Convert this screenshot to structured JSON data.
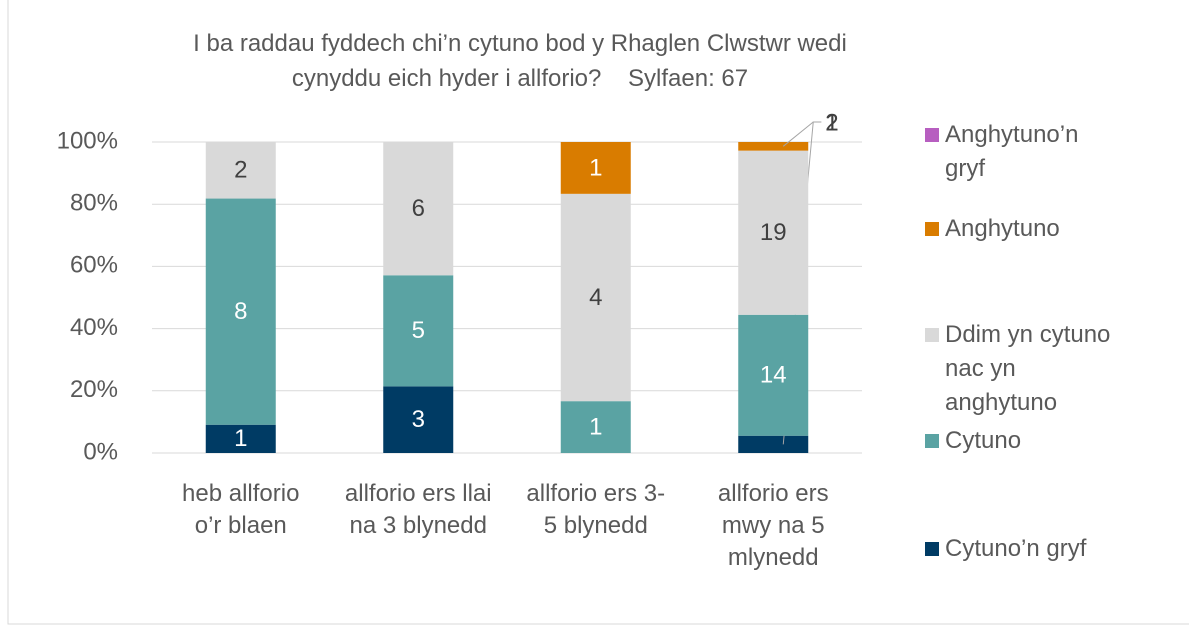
{
  "chart_data": {
    "type": "bar",
    "stacking": "percent",
    "title": [
      "I ba raddau fyddech chi’n cytuno bod y Rhaglen Clwstwr wedi",
      "cynyddu eich hyder i allforio?    Sylfaen: 67"
    ],
    "categories": [
      "heb allforio o’r blaen",
      "allforio ers llai na 3 blynedd",
      "allforio ers 3-5 blynedd",
      "allforio ers mwy na 5 mlynedd"
    ],
    "series": [
      {
        "name": "Cytuno’n gryf",
        "color": "#003b64",
        "values": [
          1,
          3,
          0,
          2
        ]
      },
      {
        "name": "Cytuno",
        "color": "#5aa3a3",
        "values": [
          8,
          5,
          1,
          14
        ]
      },
      {
        "name": "Ddim yn cytuno nac yn anghytuno",
        "color": "#d9d9d9",
        "values": [
          2,
          6,
          4,
          19
        ]
      },
      {
        "name": "Anghytuno",
        "color": "#d97c00",
        "values": [
          0,
          0,
          1,
          1
        ]
      },
      {
        "name": "Anghytuno’n gryf",
        "color": "#b75ec0",
        "values": [
          0,
          0,
          0,
          0
        ]
      }
    ],
    "ylim": [
      0,
      100
    ],
    "yticks": [
      {
        "value": 0,
        "label": "0%"
      },
      {
        "value": 20,
        "label": "20%"
      },
      {
        "value": 40,
        "label": "40%"
      },
      {
        "value": 60,
        "label": "60%"
      },
      {
        "value": 80,
        "label": "80%"
      },
      {
        "value": 100,
        "label": "100%"
      }
    ],
    "grid": true,
    "legend": "right"
  }
}
